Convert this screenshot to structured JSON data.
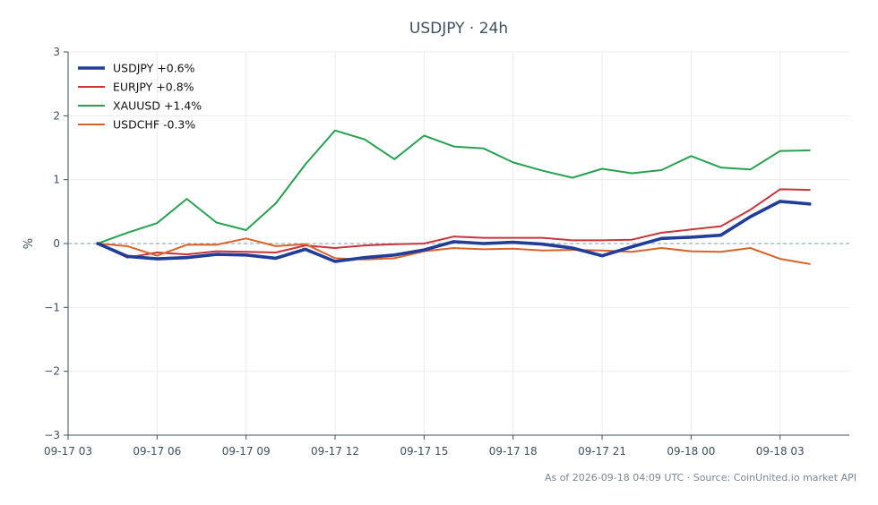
{
  "chart_data": {
    "type": "line",
    "title": "USDJPY · 24h",
    "xlabel": "",
    "ylabel": "%",
    "ylim": [
      -3,
      3
    ],
    "yticks": [
      "3",
      "2",
      "1",
      "0",
      "−1",
      "−2",
      "−3"
    ],
    "ytick_values": [
      3,
      2,
      1,
      0,
      -1,
      -2,
      -3
    ],
    "xticks": [
      "09-17 03",
      "09-17 06",
      "09-17 09",
      "09-17 12",
      "09-17 15",
      "09-17 18",
      "09-17 21",
      "09-18 00",
      "09-18 03"
    ],
    "x_start": "09-17 03:00",
    "x_end": "09-18 05:20",
    "x_interval": "1h",
    "x": [
      "09-17 04:00",
      "09-17 05:00",
      "09-17 06:00",
      "09-17 07:00",
      "09-17 08:00",
      "09-17 09:00",
      "09-17 10:00",
      "09-17 11:00",
      "09-17 12:00",
      "09-17 13:00",
      "09-17 14:00",
      "09-17 15:00",
      "09-17 16:00",
      "09-17 17:00",
      "09-17 18:00",
      "09-17 19:00",
      "09-17 20:00",
      "09-17 21:00",
      "09-17 22:00",
      "09-17 23:00",
      "09-18 00:00",
      "09-18 01:00",
      "09-18 02:00",
      "09-18 03:00",
      "09-18 04:00"
    ],
    "reference_line": 0,
    "grid": true,
    "legend_position": "top-left",
    "series": [
      {
        "name": "USDJPY +0.6%",
        "color": "#1f3d99",
        "emphasis": true,
        "values": [
          0.0,
          -0.2,
          -0.24,
          -0.22,
          -0.17,
          -0.18,
          -0.23,
          -0.09,
          -0.28,
          -0.22,
          -0.18,
          -0.1,
          0.03,
          0.0,
          0.02,
          -0.01,
          -0.07,
          -0.19,
          -0.05,
          0.08,
          0.1,
          0.13,
          0.42,
          0.66,
          0.62
        ]
      },
      {
        "name": "EURJPY +0.8%",
        "color": "#c8343a",
        "emphasis": false,
        "values": [
          0.0,
          -0.22,
          -0.14,
          -0.17,
          -0.12,
          -0.13,
          -0.14,
          -0.03,
          -0.07,
          -0.03,
          -0.01,
          0.0,
          0.11,
          0.09,
          0.09,
          0.09,
          0.05,
          0.05,
          0.06,
          0.17,
          0.22,
          0.27,
          0.53,
          0.85,
          0.84
        ]
      },
      {
        "name": "XAUUSD +1.4%",
        "color": "#27a050",
        "emphasis": false,
        "values": [
          0.0,
          0.17,
          0.32,
          0.7,
          0.33,
          0.21,
          0.63,
          1.24,
          1.77,
          1.63,
          1.32,
          1.69,
          1.52,
          1.49,
          1.27,
          1.14,
          1.03,
          1.17,
          1.1,
          1.15,
          1.37,
          1.19,
          1.16,
          1.45,
          1.46
        ]
      },
      {
        "name": "USDCHF -0.3%",
        "color": "#d9622b",
        "emphasis": false,
        "values": [
          0.0,
          -0.04,
          -0.19,
          -0.02,
          -0.02,
          0.08,
          -0.04,
          -0.01,
          -0.23,
          -0.25,
          -0.23,
          -0.12,
          -0.07,
          -0.09,
          -0.08,
          -0.11,
          -0.1,
          -0.11,
          -0.13,
          -0.07,
          -0.12,
          -0.13,
          -0.07,
          -0.24,
          -0.32
        ]
      }
    ],
    "footer": "As of 2026-09-18 04:09 UTC · Source: CoinUnited.io market API"
  },
  "colors": {
    "axis": "#3f4f5e",
    "grid": "#e9ecef",
    "reference": "#8a98a8",
    "text": "#3f4f5e"
  }
}
